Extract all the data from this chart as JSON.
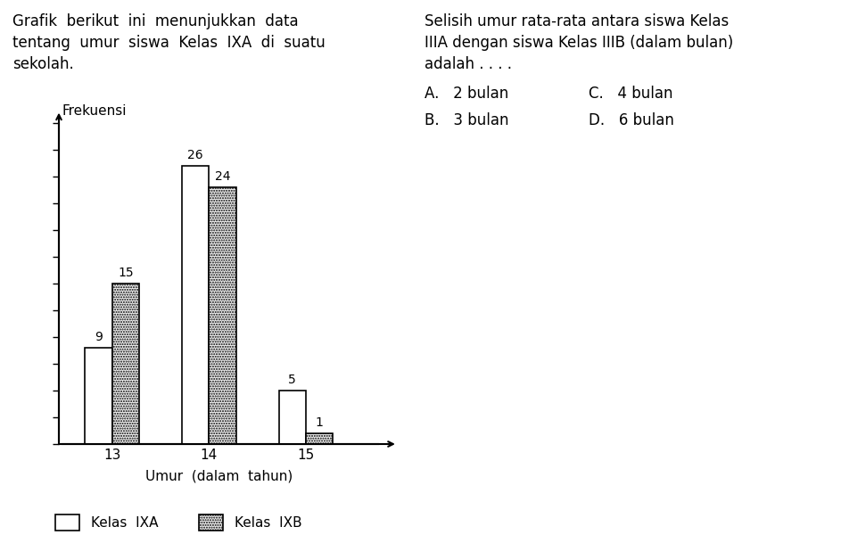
{
  "left_text_lines": [
    "Grafik  berikut  ini  menunjukkan  data",
    "tentang  umur  siswa  Kelas  IXA  di  suatu",
    "sekolah."
  ],
  "right_text_lines": [
    "Selisih umur rata-rata antara siswa Kelas",
    "IIIA dengan siswa Kelas IIIB (dalam bulan)",
    "adalah . . . ."
  ],
  "options_left": [
    "A.   2 bulan",
    "B.   3 bulan"
  ],
  "options_right": [
    "C.   4 bulan",
    "D.   6 bulan"
  ],
  "ylabel": "Frekuensi",
  "xlabel": "Umur  (dalam  tahun)",
  "categories": [
    13,
    14,
    15
  ],
  "values_A": [
    9,
    26,
    5
  ],
  "values_B": [
    15,
    24,
    1
  ],
  "bar_width": 0.28,
  "color_A": "#ffffff",
  "color_B": "#f0f0f0",
  "edge_color": "#000000",
  "legend_A": "Kelas  IXA",
  "legend_B": "Kelas  IXB",
  "ylim": [
    0,
    30
  ],
  "bar_value_fontsize": 10,
  "axis_label_fontsize": 11,
  "tick_fontsize": 11,
  "legend_fontsize": 11,
  "text_fontsize": 12
}
